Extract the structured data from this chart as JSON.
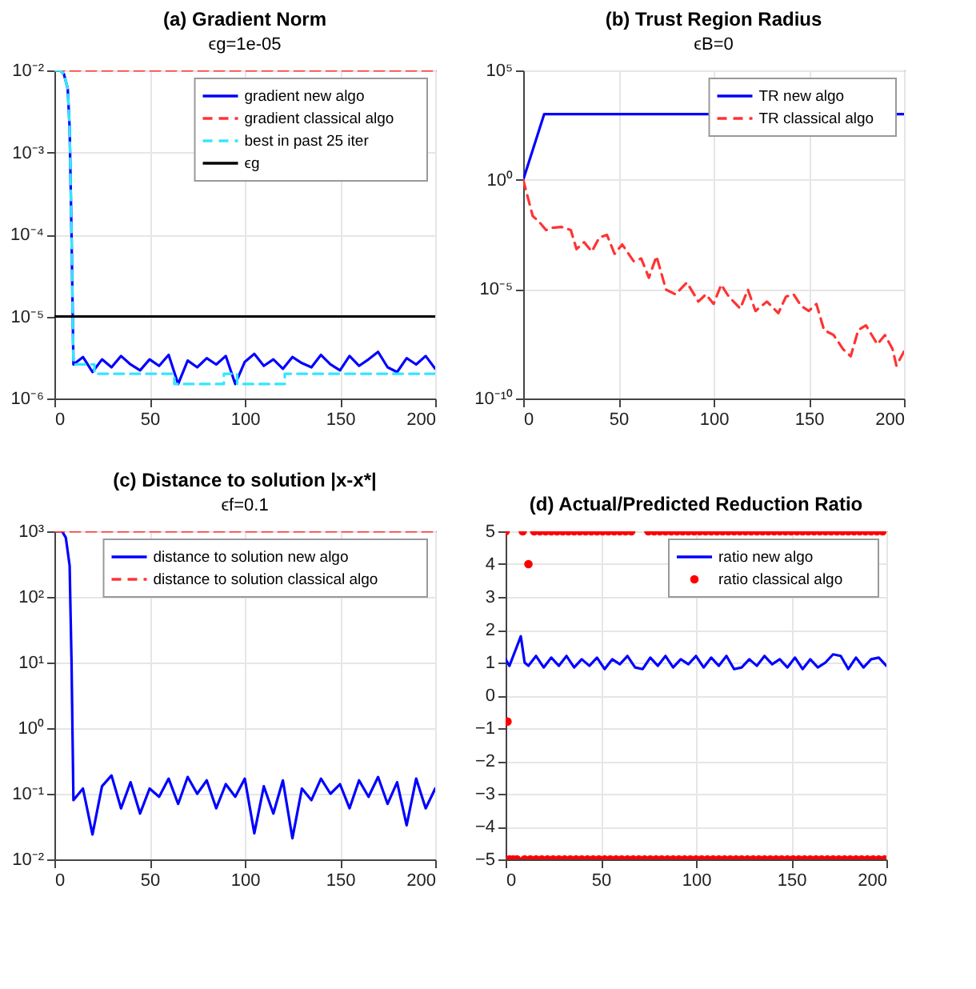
{
  "chart_data": [
    {
      "type": "line",
      "title": "(a) Gradient Norm",
      "subtitle": "ϵg=1e-05",
      "xlim": [
        0,
        200
      ],
      "xticks": [
        0,
        50,
        100,
        150,
        200
      ],
      "ylim": [
        1e-06,
        0.01
      ],
      "yticks": [
        {
          "value": 1e-06,
          "label": "10⁻⁶"
        },
        {
          "value": 1e-05,
          "label": "10⁻⁵"
        },
        {
          "value": 0.0001,
          "label": "10⁻⁴"
        },
        {
          "value": 0.001,
          "label": "10⁻³"
        },
        {
          "value": 0.01,
          "label": "10⁻²"
        }
      ],
      "log": true,
      "grid": true,
      "legend": "top right",
      "series": [
        {
          "name": "gradient new algo",
          "color": "#0000ff",
          "line_style": "solid",
          "x": [
            0,
            3,
            5,
            7,
            8,
            9,
            10,
            15,
            20,
            25,
            30,
            35,
            40,
            45,
            50,
            55,
            60,
            65,
            70,
            75,
            80,
            85,
            90,
            95,
            100,
            105,
            110,
            115,
            120,
            125,
            130,
            135,
            140,
            145,
            150,
            155,
            160,
            165,
            170,
            175,
            180,
            185,
            190,
            195,
            200
          ],
          "values": [
            0.01,
            0.01,
            0.009,
            0.006,
            0.002,
            0.0001,
            2.6e-06,
            3.2e-06,
            2.1e-06,
            3e-06,
            2.4e-06,
            3.3e-06,
            2.6e-06,
            2.2e-06,
            3e-06,
            2.5e-06,
            3.4e-06,
            1.5e-06,
            2.9e-06,
            2.4e-06,
            3.1e-06,
            2.6e-06,
            3.3e-06,
            1.5e-06,
            2.8e-06,
            3.5e-06,
            2.5e-06,
            3e-06,
            2.3e-06,
            3.2e-06,
            2.7e-06,
            2.4e-06,
            3.4e-06,
            2.6e-06,
            2.2e-06,
            3.3e-06,
            2.5e-06,
            3e-06,
            3.7e-06,
            2.4e-06,
            2.1e-06,
            3.1e-06,
            2.6e-06,
            3.3e-06,
            2.3e-06
          ]
        },
        {
          "name": "gradient classical algo",
          "color": "#ff3333",
          "line_style": "dashed",
          "x": [
            0,
            200
          ],
          "values": [
            0.01,
            0.01
          ]
        },
        {
          "name": "best in past 25 iter",
          "color": "#33e6ff",
          "line_style": "dashed",
          "x": [
            0,
            3,
            5,
            7,
            8,
            9,
            10,
            21,
            21,
            63,
            63,
            89,
            89,
            96,
            96,
            121,
            121,
            200
          ],
          "values": [
            0.01,
            0.01,
            0.009,
            0.006,
            0.002,
            0.0001,
            2.6e-06,
            2.6e-06,
            2e-06,
            2e-06,
            1.5e-06,
            1.5e-06,
            2e-06,
            2e-06,
            1.5e-06,
            1.5e-06,
            2e-06,
            2e-06
          ]
        },
        {
          "name": "ϵg",
          "color": "#000000",
          "line_style": "solid",
          "x": [
            0,
            200
          ],
          "values": [
            1e-05,
            1e-05
          ]
        }
      ]
    },
    {
      "type": "line",
      "title": "(b) Trust Region Radius",
      "subtitle": "ϵB=0",
      "xlim": [
        0,
        200
      ],
      "xticks": [
        0,
        50,
        100,
        150,
        200
      ],
      "ylim": [
        1e-10,
        100000.0
      ],
      "yticks": [
        {
          "value": 1e-10,
          "label": "10⁻¹⁰"
        },
        {
          "value": 1e-05,
          "label": "10⁻⁵"
        },
        {
          "value": 1,
          "label": "10⁰"
        },
        {
          "value": 100000.0,
          "label": "10⁵"
        }
      ],
      "log": true,
      "grid": true,
      "legend": "top right",
      "series": [
        {
          "name": "TR new algo",
          "color": "#0000ff",
          "line_style": "solid",
          "x": [
            0,
            11,
            200
          ],
          "values": [
            1,
            1000,
            1000
          ]
        },
        {
          "name": "TR classical algo",
          "color": "#ff3333",
          "line_style": "dashed",
          "x": [
            0,
            5,
            8,
            12,
            15,
            20,
            25,
            28,
            32,
            36,
            40,
            44,
            48,
            52,
            58,
            62,
            66,
            70,
            75,
            80,
            86,
            92,
            96,
            100,
            104,
            108,
            114,
            118,
            122,
            128,
            134,
            138,
            142,
            146,
            150,
            154,
            158,
            163,
            168,
            172,
            176,
            180,
            186,
            190,
            194,
            196,
            200
          ],
          "values": [
            1,
            0.022,
            0.013,
            0.005,
            0.0063,
            0.007,
            0.005,
            0.00068,
            0.0014,
            0.00052,
            0.0023,
            0.003,
            0.00041,
            0.0011,
            0.00019,
            0.00025,
            3.3e-05,
            0.00032,
            9.5e-06,
            5.8e-06,
            2e-05,
            2.7e-06,
            5.8e-06,
            2.1e-06,
            1.6e-05,
            4.5e-06,
            1.3e-06,
            9.5e-06,
            1e-06,
            2.7e-06,
            8e-07,
            4.5e-06,
            5.8e-06,
            1.7e-06,
            1e-06,
            2.1e-06,
            1.35e-07,
            8e-08,
            1.8e-08,
            8.5e-09,
            1.35e-07,
            2.2e-07,
            3e-08,
            8e-08,
            1.8e-08,
            3.2e-09,
            1.4e-08
          ]
        }
      ]
    },
    {
      "type": "line",
      "title": "(c) Distance to solution |x-x*|",
      "subtitle": "ϵf=0.1",
      "xlim": [
        0,
        200
      ],
      "xticks": [
        0,
        50,
        100,
        150,
        200
      ],
      "ylim": [
        0.01,
        1000.0
      ],
      "yticks": [
        {
          "value": 0.01,
          "label": "10⁻²"
        },
        {
          "value": 0.1,
          "label": "10⁻¹"
        },
        {
          "value": 1,
          "label": "10⁰"
        },
        {
          "value": 10,
          "label": "10¹"
        },
        {
          "value": 100,
          "label": "10²"
        },
        {
          "value": 1000,
          "label": "10³"
        }
      ],
      "log": true,
      "grid": true,
      "legend": "top right",
      "series": [
        {
          "name": "distance to solution new algo",
          "color": "#0000ff",
          "line_style": "solid",
          "x": [
            0,
            4,
            6,
            8,
            9,
            10,
            15,
            20,
            25,
            30,
            35,
            40,
            45,
            50,
            55,
            60,
            65,
            70,
            75,
            80,
            85,
            90,
            95,
            100,
            105,
            110,
            115,
            120,
            125,
            130,
            135,
            140,
            145,
            150,
            155,
            160,
            165,
            170,
            175,
            180,
            185,
            190,
            195,
            200
          ],
          "values": [
            1000,
            1000,
            800,
            300,
            10,
            0.08,
            0.12,
            0.024,
            0.13,
            0.19,
            0.06,
            0.15,
            0.05,
            0.12,
            0.09,
            0.17,
            0.07,
            0.18,
            0.1,
            0.16,
            0.06,
            0.14,
            0.09,
            0.17,
            0.025,
            0.13,
            0.05,
            0.16,
            0.021,
            0.12,
            0.08,
            0.17,
            0.1,
            0.14,
            0.06,
            0.16,
            0.09,
            0.18,
            0.07,
            0.15,
            0.033,
            0.17,
            0.06,
            0.12
          ]
        },
        {
          "name": "distance to solution classical algo",
          "color": "#ff3333",
          "line_style": "dashed",
          "x": [
            0,
            200
          ],
          "values": [
            1000,
            1000
          ]
        }
      ]
    },
    {
      "type": "line",
      "title": "(d) Actual/Predicted Reduction Ratio",
      "xlim": [
        0,
        200
      ],
      "xticks": [
        0,
        50,
        100,
        150,
        200
      ],
      "ylim": [
        -5,
        5
      ],
      "yticks": [
        -5,
        -4,
        -3,
        -2,
        -1,
        0,
        1,
        2,
        3,
        4,
        5
      ],
      "grid": true,
      "legend": "top right",
      "series": [
        {
          "name": "ratio new algo",
          "color": "#0000ff",
          "line_style": "solid",
          "x": [
            0,
            2,
            4,
            6,
            8,
            10,
            12,
            16,
            20,
            24,
            28,
            32,
            36,
            40,
            44,
            48,
            52,
            56,
            60,
            64,
            68,
            72,
            76,
            80,
            84,
            88,
            92,
            96,
            100,
            104,
            108,
            112,
            116,
            120,
            124,
            128,
            132,
            136,
            140,
            144,
            148,
            152,
            156,
            160,
            164,
            168,
            172,
            176,
            180,
            184,
            188,
            192,
            196,
            200
          ],
          "values": [
            1.1,
            0.9,
            1.2,
            1.5,
            1.8,
            1.0,
            0.9,
            1.2,
            0.85,
            1.15,
            0.9,
            1.2,
            0.85,
            1.1,
            0.9,
            1.15,
            0.8,
            1.1,
            0.95,
            1.2,
            0.85,
            0.8,
            1.15,
            0.9,
            1.2,
            0.85,
            1.1,
            0.95,
            1.2,
            0.85,
            1.15,
            0.9,
            1.2,
            0.8,
            0.85,
            1.1,
            0.9,
            1.2,
            0.95,
            1.1,
            0.85,
            1.15,
            0.8,
            1.1,
            0.85,
            1.0,
            1.25,
            1.2,
            0.8,
            1.15,
            0.85,
            1.1,
            1.15,
            0.9
          ]
        },
        {
          "name": "ratio classical algo",
          "type": "scatter",
          "marker": "circle",
          "color": "#ff0000",
          "x": [
            0,
            9,
            15,
            18,
            21,
            24,
            27,
            30,
            33,
            36,
            39,
            42,
            45,
            48,
            51,
            54,
            57,
            60,
            63,
            66,
            75,
            78,
            81,
            84,
            87,
            90,
            93,
            96,
            99,
            102,
            105,
            108,
            111,
            114,
            117,
            120,
            123,
            126,
            129,
            132,
            135,
            138,
            141,
            144,
            147,
            150,
            153,
            156,
            159,
            162,
            165,
            168,
            171,
            174,
            177,
            180,
            183,
            186,
            189,
            192,
            195,
            198,
            12,
            1,
            2,
            4,
            6,
            10,
            13,
            16,
            19,
            22,
            25,
            28,
            31,
            34,
            37,
            40,
            43,
            46,
            49,
            52,
            55,
            58,
            61,
            64,
            67,
            70,
            73,
            76,
            79,
            82,
            85,
            88,
            91,
            94,
            97,
            100,
            103,
            106,
            109,
            112,
            115,
            118,
            121,
            124,
            127,
            130,
            133,
            136,
            139,
            142,
            145,
            148,
            151,
            154,
            157,
            160,
            163,
            166,
            169,
            172,
            175,
            178,
            181,
            184,
            187,
            190,
            193,
            196,
            199
          ],
          "values": [
            5,
            5,
            5,
            5,
            5,
            5,
            5,
            5,
            5,
            5,
            5,
            5,
            5,
            5,
            5,
            5,
            5,
            5,
            5,
            5,
            5,
            5,
            5,
            5,
            5,
            5,
            5,
            5,
            5,
            5,
            5,
            5,
            5,
            5,
            5,
            5,
            5,
            5,
            5,
            5,
            5,
            5,
            5,
            5,
            5,
            5,
            5,
            5,
            5,
            5,
            5,
            5,
            5,
            5,
            5,
            5,
            5,
            5,
            5,
            5,
            5,
            5,
            4,
            -0.8,
            -5,
            -5,
            -5,
            -5,
            -5,
            -5,
            -5,
            -5,
            -5,
            -5,
            -5,
            -5,
            -5,
            -5,
            -5,
            -5,
            -5,
            -5,
            -5,
            -5,
            -5,
            -5,
            -5,
            -5,
            -5,
            -5,
            -5,
            -5,
            -5,
            -5,
            -5,
            -5,
            -5,
            -5,
            -5,
            -5,
            -5,
            -5,
            -5,
            -5,
            -5,
            -5,
            -5,
            -5,
            -5,
            -5,
            -5,
            -5,
            -5,
            -5,
            -5,
            -5,
            -5,
            -5,
            -5,
            -5,
            -5,
            -5,
            -5,
            -5,
            -5,
            -5,
            -5,
            -5,
            -5,
            -5,
            -5
          ]
        }
      ]
    }
  ]
}
